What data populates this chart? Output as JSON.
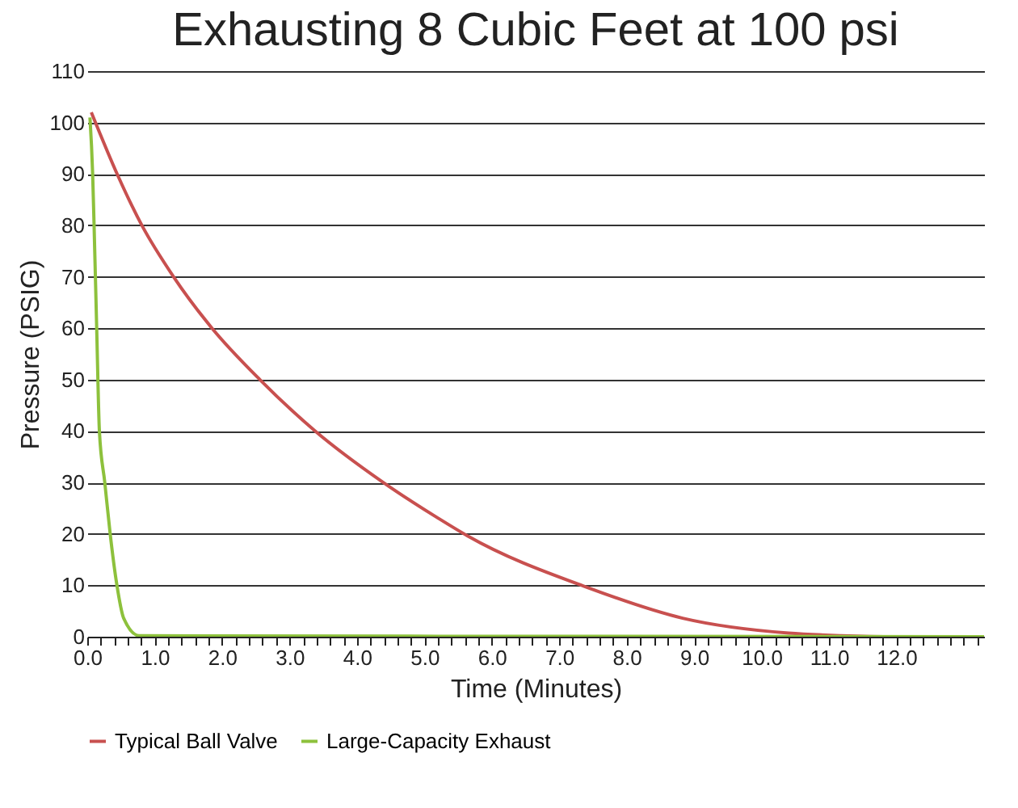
{
  "chart_data": {
    "type": "line",
    "title": "Exhausting 8 Cubic Feet at 100 psi",
    "xlabel": "Time (Minutes)",
    "ylabel": "Pressure (PSIG)",
    "series": [
      {
        "name": "Typical Ball Valve",
        "color": "#c8504f",
        "x": [
          0.06,
          0.46,
          0.81,
          1.28,
          1.85,
          2.56,
          3.38,
          4.39,
          5.21,
          5.64,
          7.41,
          8.83,
          10.4,
          11.18,
          12,
          13.3
        ],
        "values": [
          102,
          89.5,
          80,
          70,
          60,
          50,
          40,
          30,
          23,
          19.6,
          9.6,
          3.6,
          0.7,
          0.2,
          0,
          0
        ]
      },
      {
        "name": "Large-Capacity Exhaust",
        "color": "#8dc13c",
        "x": [
          0.04,
          0.08,
          0.1,
          0.14,
          0.18,
          0.26,
          0.34,
          0.44,
          0.54,
          0.77,
          13.3
        ],
        "values": [
          101,
          90,
          80.6,
          60,
          40,
          30,
          20,
          10,
          3.6,
          0.2,
          0
        ]
      }
    ],
    "xlim": [
      0,
      13.3
    ],
    "xticks": [
      {
        "value": 0,
        "label": "0.0"
      },
      {
        "value": 0.2,
        "label": null
      },
      {
        "value": 0.4,
        "label": null
      },
      {
        "value": 0.6,
        "label": null
      },
      {
        "value": 0.8,
        "label": null
      },
      {
        "value": 1,
        "label": "1.0"
      },
      {
        "value": 1.2,
        "label": null
      },
      {
        "value": 1.4,
        "label": null
      },
      {
        "value": 1.6,
        "label": null
      },
      {
        "value": 1.8,
        "label": null
      },
      {
        "value": 2,
        "label": "2.0"
      },
      {
        "value": 2.2,
        "label": null
      },
      {
        "value": 2.4,
        "label": null
      },
      {
        "value": 2.6,
        "label": null
      },
      {
        "value": 2.8,
        "label": null
      },
      {
        "value": 3,
        "label": "3.0"
      },
      {
        "value": 3.2,
        "label": null
      },
      {
        "value": 3.4,
        "label": null
      },
      {
        "value": 3.6,
        "label": null
      },
      {
        "value": 3.8,
        "label": null
      },
      {
        "value": 4,
        "label": "4.0"
      },
      {
        "value": 4.2,
        "label": null
      },
      {
        "value": 4.4,
        "label": null
      },
      {
        "value": 4.6,
        "label": null
      },
      {
        "value": 4.8,
        "label": null
      },
      {
        "value": 5,
        "label": "5.0"
      },
      {
        "value": 5.2,
        "label": null
      },
      {
        "value": 5.4,
        "label": null
      },
      {
        "value": 5.6,
        "label": null
      },
      {
        "value": 5.8,
        "label": null
      },
      {
        "value": 6,
        "label": "6.0"
      },
      {
        "value": 6.2,
        "label": null
      },
      {
        "value": 6.4,
        "label": null
      },
      {
        "value": 6.6,
        "label": null
      },
      {
        "value": 6.8,
        "label": null
      },
      {
        "value": 7,
        "label": "7.0"
      },
      {
        "value": 7.2,
        "label": null
      },
      {
        "value": 7.4,
        "label": null
      },
      {
        "value": 7.6,
        "label": null
      },
      {
        "value": 7.8,
        "label": null
      },
      {
        "value": 8,
        "label": "8.0"
      },
      {
        "value": 8.2,
        "label": null
      },
      {
        "value": 8.4,
        "label": null
      },
      {
        "value": 8.6,
        "label": null
      },
      {
        "value": 8.8,
        "label": null
      },
      {
        "value": 9,
        "label": "9.0"
      },
      {
        "value": 9.2,
        "label": null
      },
      {
        "value": 9.4,
        "label": null
      },
      {
        "value": 9.6,
        "label": null
      },
      {
        "value": 9.8,
        "label": null
      },
      {
        "value": 10,
        "label": "10.0"
      },
      {
        "value": 10.2,
        "label": null
      },
      {
        "value": 10.4,
        "label": null
      },
      {
        "value": 10.6,
        "label": null
      },
      {
        "value": 10.8,
        "label": null
      },
      {
        "value": 11,
        "label": "11.0"
      },
      {
        "value": 11.2,
        "label": null
      },
      {
        "value": 11.4,
        "label": null
      },
      {
        "value": 11.6,
        "label": null
      },
      {
        "value": 11.8,
        "label": null
      },
      {
        "value": 12,
        "label": "12.0"
      },
      {
        "value": 12.2,
        "label": null
      },
      {
        "value": 12.4,
        "label": null
      },
      {
        "value": 12.6,
        "label": null
      },
      {
        "value": 12.8,
        "label": null
      },
      {
        "value": 13,
        "label": null
      },
      {
        "value": 13.2,
        "label": null
      }
    ],
    "ylim": [
      0,
      110
    ],
    "yticks": [
      0,
      10,
      20,
      30,
      40,
      50,
      60,
      70,
      80,
      90,
      100,
      110
    ],
    "grid": "y",
    "legend": "bottom",
    "marker": "none",
    "line_style": "solid"
  }
}
